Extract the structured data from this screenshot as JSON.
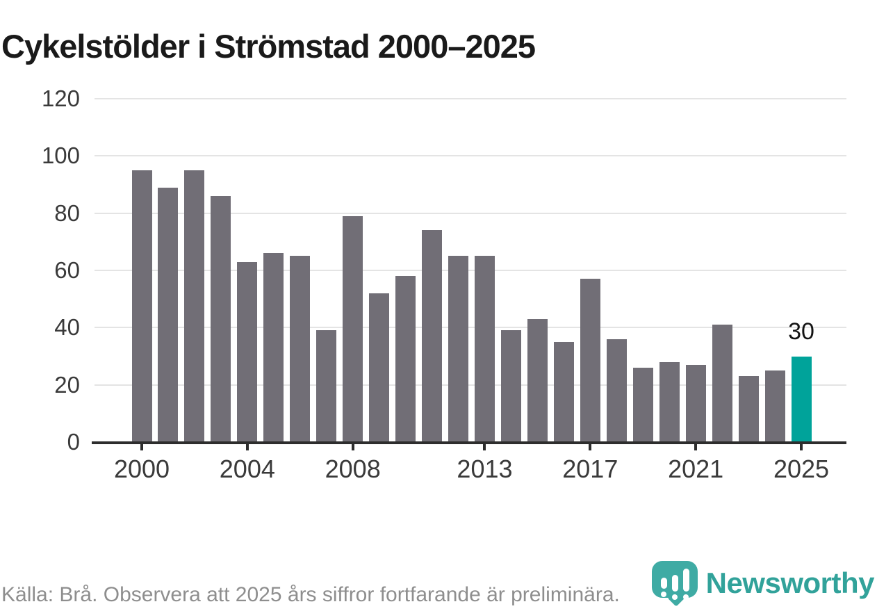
{
  "title": "Cykelstölder i Strömstad 2000–2025",
  "chart_data": {
    "type": "bar",
    "categories": [
      2000,
      2001,
      2002,
      2003,
      2004,
      2005,
      2006,
      2007,
      2008,
      2009,
      2010,
      2011,
      2012,
      2013,
      2014,
      2015,
      2016,
      2017,
      2018,
      2019,
      2020,
      2021,
      2022,
      2023,
      2024,
      2025
    ],
    "values": [
      95,
      89,
      95,
      86,
      63,
      66,
      65,
      39,
      79,
      52,
      58,
      74,
      65,
      65,
      39,
      43,
      35,
      57,
      36,
      26,
      28,
      27,
      41,
      23,
      25,
      30
    ],
    "title": "Cykelstölder i Strömstad 2000–2025",
    "xlabel": "",
    "ylabel": "",
    "ylim": [
      0,
      120
    ],
    "yticks": [
      0,
      20,
      40,
      60,
      80,
      100,
      120
    ],
    "xtick_labels": [
      "2000",
      "2004",
      "2008",
      "2013",
      "2017",
      "2021",
      "2025"
    ],
    "grid": true,
    "legend": false,
    "bar_color": "#716e76",
    "highlight_index": 25,
    "highlight_color": "#00a39a",
    "annotation": {
      "index": 25,
      "text": "30"
    }
  },
  "footer": {
    "source": "Källa: Brå. Observera att 2025 års siffror fortfarande är preliminära."
  },
  "logo": {
    "text": "Newsworthy",
    "icon": "newsworthy-speech-bubble-chart-icon",
    "bubble_color": "#3faba4",
    "text_color": "#31a29a"
  }
}
